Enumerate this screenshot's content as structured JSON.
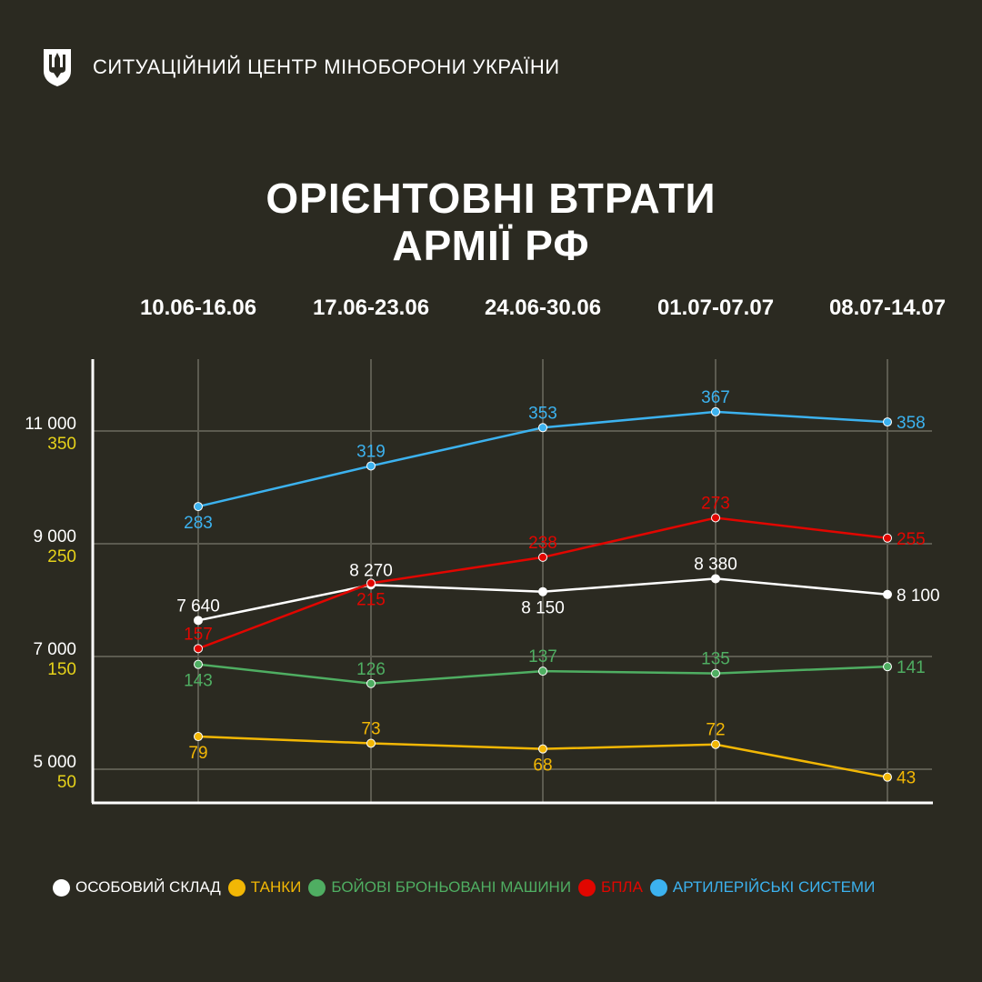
{
  "header": {
    "title": "СИТУАЦІЙНИЙ ЦЕНТР МІНОБОРОНИ УКРАЇНИ",
    "logo": "trident-shield-icon"
  },
  "chart_data": {
    "type": "line",
    "title_lines": [
      "ОРІЄНТОВНІ ВТРАТИ",
      "АРМІЇ РФ"
    ],
    "categories": [
      "10.06-16.06",
      "17.06-23.06",
      "24.06-30.06",
      "01.07-07.07",
      "08.07-14.07"
    ],
    "y_axis_primary": {
      "ticks": [
        "11 000",
        "9 000",
        "7 000",
        "5 000"
      ],
      "values": [
        11000,
        9000,
        7000,
        5000
      ],
      "color": "#ffffff"
    },
    "y_axis_secondary": {
      "ticks": [
        "350",
        "250",
        "150",
        "50"
      ],
      "values": [
        350,
        250,
        150,
        50
      ],
      "color": "#e6d21a"
    },
    "grid": true,
    "legend_position": "bottom",
    "series": [
      {
        "name": "ОСОБОВИЙ СКЛАД",
        "axis": "primary",
        "color": "#ffffff",
        "values": [
          7640,
          8270,
          8150,
          8380,
          8100
        ],
        "labels": [
          "7 640",
          "8 270",
          "8 150",
          "8 380",
          "8 100"
        ]
      },
      {
        "name": "ТАНКИ",
        "axis": "secondary",
        "color": "#f2b705",
        "values": [
          79,
          73,
          68,
          72,
          43
        ],
        "labels": [
          "79",
          "73",
          "68",
          "72",
          "43"
        ]
      },
      {
        "name": "БОЙОВІ БРОНЬОВАНІ МАШИНИ",
        "axis": "secondary",
        "color": "#4fae62",
        "values": [
          143,
          126,
          137,
          135,
          141
        ],
        "labels": [
          "143",
          "126",
          "137",
          "135",
          "141"
        ]
      },
      {
        "name": "БПЛА",
        "axis": "secondary",
        "color": "#e10600",
        "values": [
          157,
          215,
          238,
          273,
          255
        ],
        "labels": [
          "157",
          "215",
          "238",
          "273",
          "255"
        ]
      },
      {
        "name": "АРТИЛЕРІЙСЬКІ СИСТЕМИ",
        "axis": "secondary",
        "color": "#3cb2ef",
        "values": [
          283,
          319,
          353,
          367,
          358
        ],
        "labels": [
          "283",
          "319",
          "353",
          "367",
          "358"
        ]
      }
    ]
  }
}
